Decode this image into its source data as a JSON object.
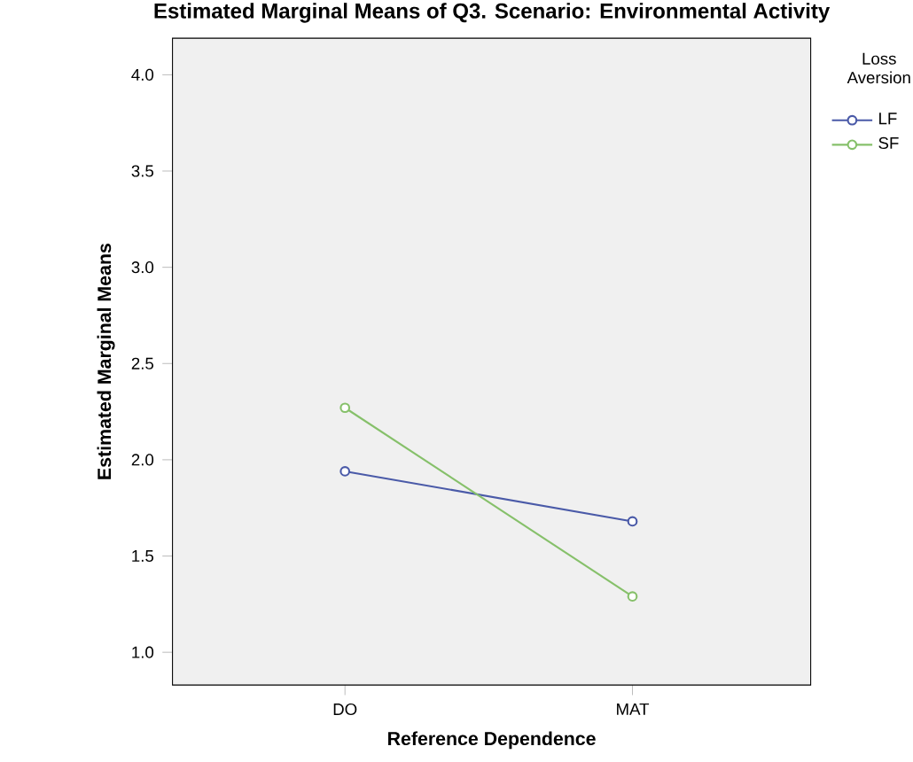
{
  "chart_data": {
    "type": "line",
    "title": "Estimated Marginal Means of Q3. Scenario: Environmental Activity",
    "xlabel": "Reference Dependence",
    "ylabel": "Estimated Marginal Means",
    "legend_title": "Loss Aversion",
    "categories": [
      "DO",
      "MAT"
    ],
    "series": [
      {
        "name": "LF",
        "color": "#4a5aa8",
        "values": [
          1.94,
          1.68
        ]
      },
      {
        "name": "SF",
        "color": "#86c06a",
        "values": [
          2.27,
          1.29
        ]
      }
    ],
    "ylim": [
      0.83,
      4.19
    ],
    "yticks": [
      {
        "value": 1.0,
        "label": "1.0"
      },
      1.5,
      {
        "value": 2.0,
        "label": "2.0"
      },
      2.5,
      {
        "value": 3.0,
        "label": "3.0"
      },
      3.5,
      {
        "value": 4.0,
        "label": "4.0"
      }
    ],
    "marker": "circle",
    "legend": "top right",
    "grid": false
  }
}
